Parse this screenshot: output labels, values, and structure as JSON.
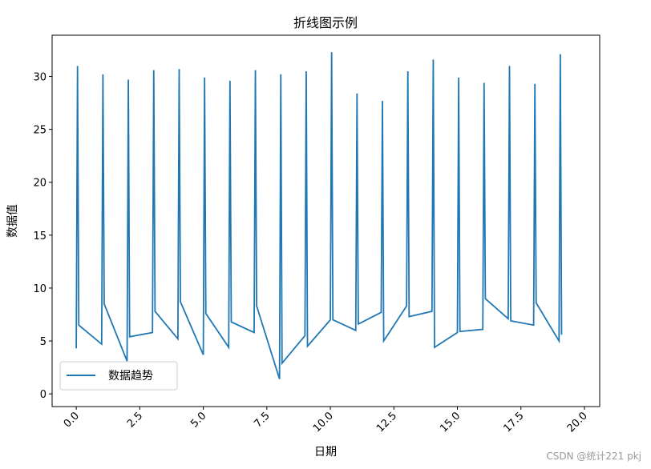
{
  "chart_data": {
    "type": "line",
    "title": "折线图示例",
    "x_label": "日期",
    "y_label": "数据值",
    "x": [
      0,
      0.05,
      0.1,
      1,
      1.05,
      1.1,
      2,
      2.05,
      2.1,
      3,
      3.05,
      3.1,
      4,
      4.05,
      4.1,
      5,
      5.05,
      5.1,
      6,
      6.05,
      6.1,
      7,
      7.05,
      7.1,
      8,
      8.05,
      8.1,
      9,
      9.05,
      9.1,
      10,
      10.05,
      10.1,
      11,
      11.05,
      11.1,
      12,
      12.05,
      12.1,
      13,
      13.05,
      13.1,
      14,
      14.05,
      14.1,
      15,
      15.05,
      15.1,
      16,
      16.05,
      16.1,
      17,
      17.05,
      17.1,
      18,
      18.05,
      18.1,
      19,
      19.05,
      19.1
    ],
    "series": [
      {
        "name": "数据趋势",
        "color": "#1f77b4",
        "values": [
          4.3,
          31.0,
          6.5,
          4.7,
          30.2,
          8.5,
          3.1,
          29.7,
          5.4,
          5.8,
          30.6,
          7.8,
          5.2,
          30.7,
          8.7,
          3.7,
          29.9,
          7.6,
          4.4,
          29.6,
          6.8,
          5.8,
          30.6,
          8.3,
          1.4,
          30.2,
          2.9,
          5.5,
          30.5,
          4.5,
          7.0,
          32.3,
          7.0,
          6.0,
          28.4,
          6.6,
          7.7,
          27.7,
          5.0,
          8.3,
          30.5,
          7.3,
          7.8,
          31.6,
          4.4,
          5.8,
          29.9,
          5.9,
          6.1,
          29.4,
          9.0,
          7.1,
          31.0,
          6.9,
          6.5,
          29.3,
          8.6,
          5.0,
          32.1,
          5.6
        ]
      }
    ],
    "xlim": [
      -0.95,
      20.6
    ],
    "ylim": [
      -1.2,
      33.9
    ],
    "xticks": [
      {
        "value": 0,
        "label": "0.0"
      },
      {
        "value": 2.5,
        "label": "2.5"
      },
      {
        "value": 5,
        "label": "5.0"
      },
      {
        "value": 7.5,
        "label": "7.5"
      },
      {
        "value": 10,
        "label": "10.0"
      },
      {
        "value": 12.5,
        "label": "12.5"
      },
      {
        "value": 15,
        "label": "15.0"
      },
      {
        "value": 17.5,
        "label": "17.5"
      },
      {
        "value": 20,
        "label": "20.0"
      }
    ],
    "yticks": [
      0,
      5,
      10,
      15,
      20,
      25,
      30
    ],
    "legend": "lower left",
    "grid": false,
    "watermark": "CSDN @统计221 pkj"
  }
}
